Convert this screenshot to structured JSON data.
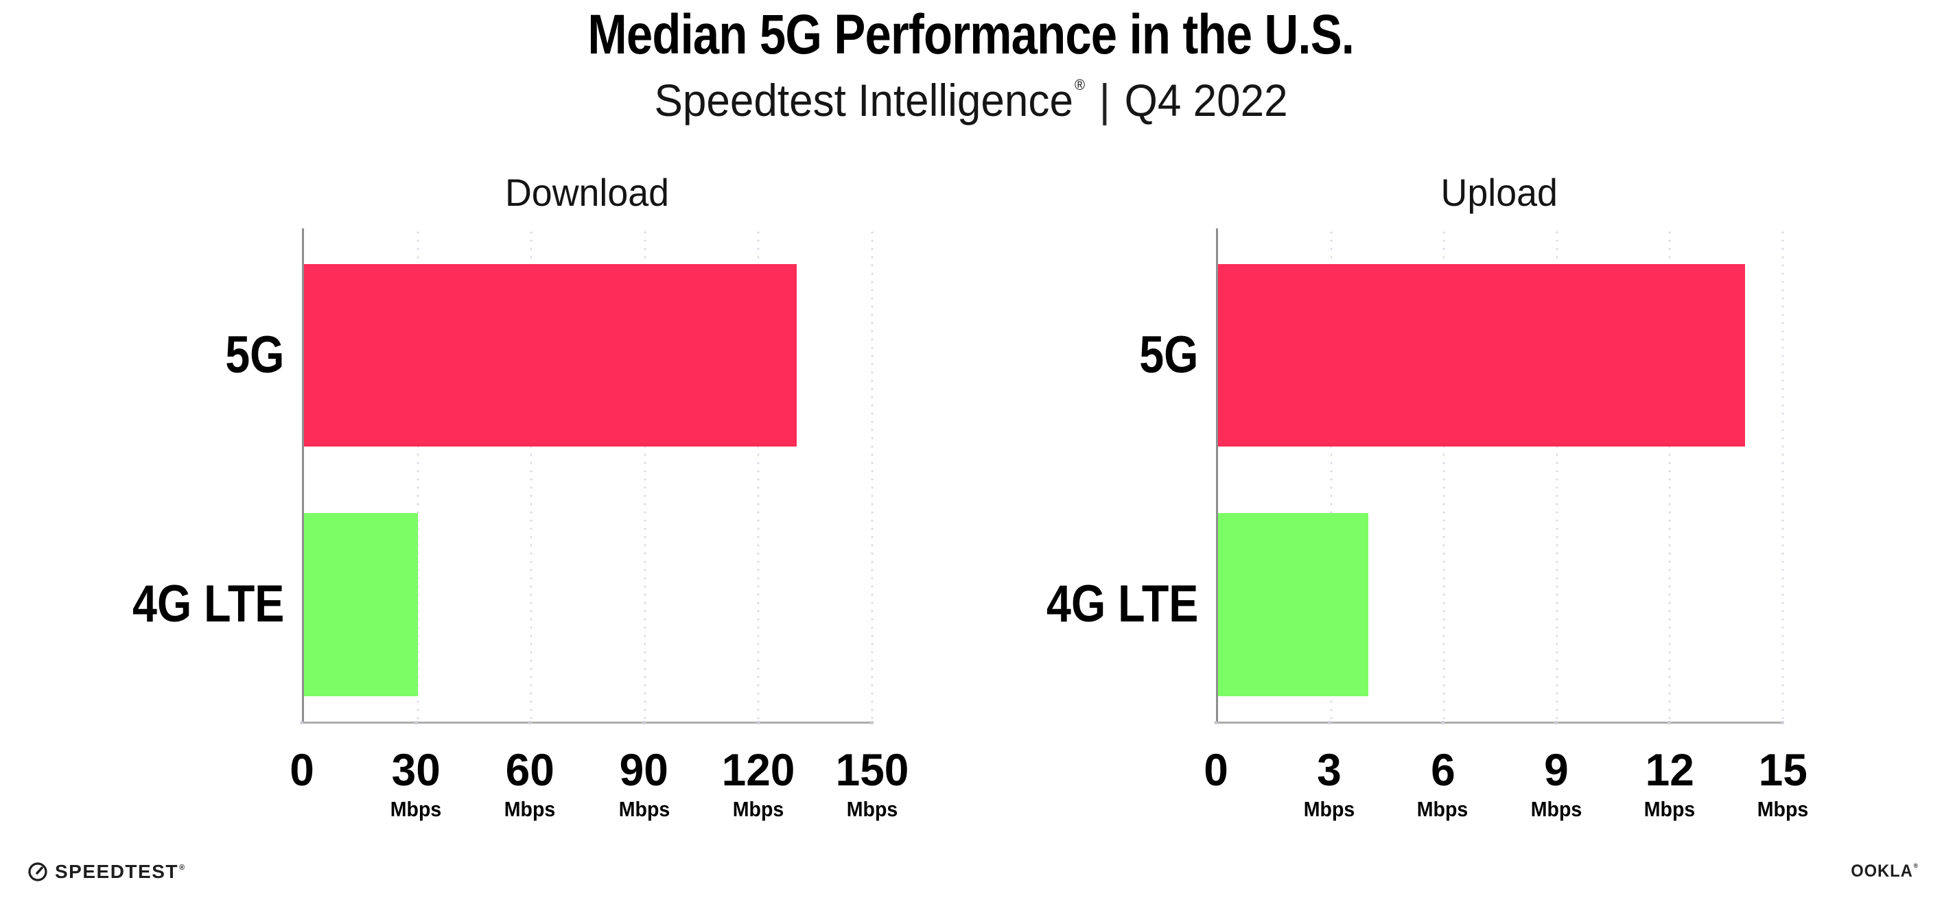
{
  "header": {
    "title": "Median 5G Performance in the U.S.",
    "subtitle_brand": "Speedtest Intelligence",
    "subtitle_registered_mark": "®",
    "subtitle_separator": "|",
    "subtitle_period": "Q4 2022"
  },
  "chart_data": [
    {
      "type": "bar",
      "orientation": "horizontal",
      "title": "Download",
      "categories": [
        "5G",
        "4G LTE"
      ],
      "values": [
        130,
        30
      ],
      "unit": "Mbps",
      "xlim": [
        0,
        150
      ],
      "xticks": [
        0,
        30,
        60,
        90,
        120,
        150
      ],
      "grid": "vertical dotted, shown at every tick including right edge, hidden behind bars",
      "legend": "none",
      "bar_colors": [
        "#FD2D58",
        "#7DFD65"
      ]
    },
    {
      "type": "bar",
      "orientation": "horizontal",
      "title": "Upload",
      "categories": [
        "5G",
        "4G LTE"
      ],
      "values": [
        14,
        4
      ],
      "unit": "Mbps",
      "xlim": [
        0,
        15
      ],
      "xticks": [
        0,
        3,
        6,
        9,
        12,
        15
      ],
      "grid": "vertical dotted, shown at every tick including right edge, hidden behind bars",
      "legend": "none",
      "bar_colors": [
        "#FD2D58",
        "#7DFD65"
      ]
    }
  ],
  "footer": {
    "speedtest_label": "SPEEDTEST",
    "speedtest_mark": "®",
    "speedtest_icon": "speedtest-gauge-icon",
    "ookla_label": "OOKLA",
    "ookla_mark": "®"
  },
  "colors": {
    "bar_5g": "#FD2D58",
    "bar_4g_lte": "#7DFD65",
    "gridline_dots": "#D9D9E4",
    "y_axis_line": "#8E8E8E",
    "x_axis_line": "#ADADAD",
    "text": "#000000",
    "logo_ink": "#1E1E1E"
  }
}
